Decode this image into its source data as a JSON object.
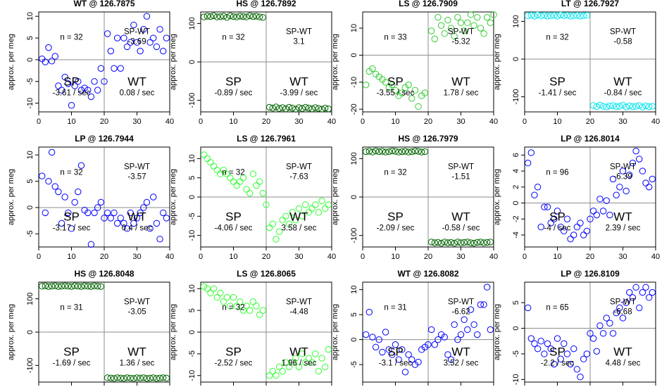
{
  "chart_data": [
    {
      "type": "scatter",
      "title": "WT @ 126.7875",
      "ylabel": "approx. per meg",
      "color": "#0000ff",
      "xlim": [
        0,
        40
      ],
      "ylim": [
        -12,
        11
      ],
      "xticks": [
        0,
        10,
        20,
        30,
        40
      ],
      "yticks": [
        -10,
        -5,
        0,
        5,
        10
      ],
      "labels": {
        "n": "n = 32",
        "sp": "SP",
        "sp_rate": "-3.61 / sec",
        "wt": "WT",
        "wt_rate": "0.08 / sec",
        "sp_wt": "SP-WT",
        "sp_wt_val": "-3.69"
      },
      "x": [
        1,
        2,
        3,
        4,
        5,
        6,
        7,
        8,
        9,
        10,
        11,
        12,
        13,
        14,
        15,
        16,
        17,
        18,
        19,
        20,
        21,
        22,
        23,
        24,
        25,
        26,
        27,
        28,
        29,
        30,
        31,
        32,
        33,
        34,
        35,
        36,
        37,
        38,
        39
      ],
      "y": [
        0.2,
        -0.5,
        2.8,
        -0.3,
        0.8,
        -6,
        -7,
        -4,
        -5.5,
        -10.5,
        -6,
        -5,
        -7,
        -6.5,
        -7,
        -8.5,
        -5,
        -7,
        -2,
        -5,
        6,
        2,
        -2,
        5,
        -2,
        5,
        3,
        4,
        8,
        4,
        2,
        7,
        10,
        4,
        5,
        3,
        7,
        2,
        5
      ]
    },
    {
      "type": "scatter",
      "title": "HS @ 126.7892",
      "ylabel": "approx. per meg",
      "color": "#006400",
      "xlim": [
        0,
        40
      ],
      "ylim": [
        -130,
        130
      ],
      "xticks": [
        0,
        10,
        20,
        30,
        40
      ],
      "yticks": [
        -100,
        0,
        100
      ],
      "labels": {
        "n": "n = 32",
        "sp": "SP",
        "sp_rate": "-0.89 / sec",
        "wt": "WT",
        "wt_rate": "-3.99 / sec",
        "sp_wt": "SP-WT",
        "sp_wt_val": "3.1"
      },
      "x": [
        1,
        2,
        3,
        4,
        5,
        6,
        7,
        8,
        9,
        10,
        11,
        12,
        13,
        14,
        15,
        16,
        17,
        18,
        19,
        21,
        22,
        23,
        24,
        25,
        26,
        27,
        28,
        29,
        30,
        31,
        32,
        33,
        34,
        35,
        36,
        37,
        38,
        39
      ],
      "y": [
        117,
        119,
        118,
        120,
        117,
        118,
        119,
        116,
        120,
        118,
        117,
        119,
        118,
        117,
        120,
        118,
        119,
        117,
        116,
        -118,
        -120,
        -117,
        -121,
        -119,
        -122,
        -118,
        -120,
        -123,
        -119,
        -121,
        -118,
        -120,
        -122,
        -119,
        -121,
        -123,
        -120,
        -122
      ]
    },
    {
      "type": "scatter",
      "title": "LS @ 126.7909",
      "ylabel": "approx. per meg",
      "color": "#33cc33",
      "xlim": [
        0,
        40
      ],
      "ylim": [
        -21,
        16
      ],
      "xticks": [
        0,
        10,
        20,
        30,
        40
      ],
      "yticks": [
        -20,
        -10,
        0,
        10
      ],
      "labels": {
        "n": "n = 33",
        "sp": "SP",
        "sp_rate": "-3.55 / sec",
        "wt": "WT",
        "wt_rate": "1.78 / sec",
        "sp_wt": "SP-WT",
        "sp_wt_val": "-5.32"
      },
      "x": [
        1,
        2,
        3,
        4,
        5,
        6,
        7,
        8,
        9,
        10,
        11,
        12,
        13,
        14,
        15,
        16,
        17,
        18,
        19,
        21,
        22,
        23,
        24,
        25,
        26,
        27,
        28,
        29,
        30,
        31,
        32,
        33,
        34,
        35,
        36,
        37,
        38,
        39,
        40
      ],
      "y": [
        -11,
        -6,
        -5,
        -7,
        -8,
        -9,
        -10,
        -12,
        -11,
        -13,
        -15,
        -14,
        -12,
        -11,
        -16,
        -13,
        -19,
        -15,
        -14,
        9,
        6,
        14,
        11,
        8,
        13,
        10,
        7,
        14,
        12,
        9,
        12,
        15,
        11,
        14,
        10,
        8,
        14,
        12,
        15
      ]
    },
    {
      "type": "scatter",
      "title": "LT @ 126.7927",
      "ylabel": "approx. per meg",
      "color": "#00e5ee",
      "xlim": [
        0,
        40
      ],
      "ylim": [
        -140,
        125
      ],
      "xticks": [
        0,
        10,
        20,
        30,
        40
      ],
      "yticks": [
        -100,
        0,
        100
      ],
      "labels": {
        "n": "n = 32",
        "sp": "SP",
        "sp_rate": "-1.41 / sec",
        "wt": "WT",
        "wt_rate": "-0.84 / sec",
        "sp_wt": "SP-WT",
        "sp_wt_val": "-0.58"
      },
      "x": [
        1,
        2,
        3,
        4,
        5,
        6,
        7,
        8,
        9,
        10,
        11,
        12,
        13,
        14,
        15,
        16,
        17,
        18,
        19,
        21,
        22,
        23,
        24,
        25,
        26,
        27,
        28,
        29,
        30,
        31,
        32,
        33,
        34,
        35,
        36,
        37,
        38,
        39
      ],
      "y": [
        115,
        116,
        114,
        117,
        115,
        116,
        114,
        115,
        116,
        114,
        117,
        115,
        116,
        114,
        115,
        116,
        114,
        115,
        116,
        -123,
        -126,
        -122,
        -125,
        -127,
        -124,
        -123,
        -126,
        -125,
        -122,
        -127,
        -124,
        -126,
        -125,
        -123,
        -127,
        -124,
        -126,
        -125
      ]
    },
    {
      "type": "scatter",
      "title": "LP @ 126.7944",
      "ylabel": "approx. per meg",
      "color": "#0000ff",
      "xlim": [
        0,
        40
      ],
      "ylim": [
        -7.5,
        11.5
      ],
      "xticks": [
        0,
        10,
        20,
        30,
        40
      ],
      "yticks": [
        -5,
        0,
        5,
        10
      ],
      "labels": {
        "n": "n = 32",
        "sp": "SP",
        "sp_rate": "-3.17 / sec",
        "wt": "WT",
        "wt_rate": "0.4 / sec",
        "sp_wt": "SP-WT",
        "sp_wt_val": "-3.57"
      },
      "x": [
        1,
        2,
        3,
        4,
        5,
        6,
        7,
        8,
        9,
        10,
        11,
        12,
        13,
        14,
        15,
        16,
        17,
        18,
        19,
        20,
        21,
        22,
        23,
        24,
        25,
        26,
        27,
        28,
        29,
        30,
        31,
        32,
        33,
        34,
        35,
        36,
        37,
        38,
        39
      ],
      "y": [
        6,
        -1,
        5,
        10.5,
        4,
        3,
        -3,
        2,
        -1,
        -4,
        1,
        3,
        8,
        -0.5,
        -1,
        -7,
        -1,
        0,
        1,
        -2,
        -1,
        -2,
        -1,
        -3,
        -2,
        -3,
        -4,
        -1,
        -3,
        -2,
        -1,
        0,
        1,
        -4,
        2,
        -3,
        -6,
        -1,
        -2
      ]
    },
    {
      "type": "scatter",
      "title": "LS @ 126.7961",
      "ylabel": "approx. per meg",
      "color": "#33ff33",
      "xlim": [
        0,
        40
      ],
      "ylim": [
        -13,
        13
      ],
      "xticks": [
        0,
        10,
        20,
        30,
        40
      ],
      "yticks": [
        -10,
        -5,
        0,
        5,
        10
      ],
      "labels": {
        "n": "n = 32",
        "sp": "SP",
        "sp_rate": "-4.06 / sec",
        "wt": "WT",
        "wt_rate": "3.58 / sec",
        "sp_wt": "SP-WT",
        "sp_wt_val": "-7.63"
      },
      "x": [
        1,
        2,
        3,
        4,
        5,
        6,
        7,
        8,
        9,
        10,
        11,
        12,
        13,
        14,
        15,
        16,
        17,
        18,
        19,
        20,
        21,
        22,
        23,
        24,
        25,
        26,
        27,
        28,
        29,
        30,
        31,
        32,
        33,
        34,
        35,
        36,
        37,
        38,
        39
      ],
      "y": [
        11,
        10,
        9,
        8,
        7,
        6,
        7,
        6,
        5,
        4,
        3,
        4,
        5,
        2,
        1,
        6,
        3,
        4,
        1,
        -2,
        -8,
        -7,
        -11,
        -9,
        -6,
        -5,
        -7,
        -4,
        -6,
        -3,
        -5,
        -2,
        -4,
        -3,
        -2,
        -4,
        -1,
        -3,
        -2
      ]
    },
    {
      "type": "scatter",
      "title": "HS @ 126.7979",
      "ylabel": "approx. per meg",
      "color": "#006400",
      "xlim": [
        0,
        40
      ],
      "ylim": [
        -130,
        130
      ],
      "xticks": [
        0,
        10,
        20,
        30,
        40
      ],
      "yticks": [
        -100,
        0,
        100
      ],
      "labels": {
        "n": "n = 32",
        "sp": "SP",
        "sp_rate": "-2.09 / sec",
        "wt": "WT",
        "wt_rate": "-0.58 / sec",
        "sp_wt": "SP-WT",
        "sp_wt_val": "-1.51"
      },
      "x": [
        1,
        2,
        3,
        4,
        5,
        6,
        7,
        8,
        9,
        10,
        11,
        12,
        13,
        14,
        15,
        16,
        17,
        18,
        19,
        21,
        22,
        23,
        24,
        25,
        26,
        27,
        28,
        29,
        30,
        31,
        32,
        33,
        34,
        35,
        36,
        37,
        38,
        39
      ],
      "y": [
        118,
        119,
        117,
        120,
        118,
        119,
        117,
        118,
        120,
        119,
        117,
        118,
        119,
        117,
        118,
        120,
        119,
        117,
        118,
        -117,
        -119,
        -118,
        -120,
        -117,
        -119,
        -118,
        -120,
        -117,
        -119,
        -118,
        -117,
        -119,
        -120,
        -118,
        -117,
        -119,
        -118,
        -117
      ]
    },
    {
      "type": "scatter",
      "title": "LP @ 126.8014",
      "ylabel": "approx. per meg",
      "color": "#0000ff",
      "xlim": [
        0,
        40
      ],
      "ylim": [
        -5.5,
        7
      ],
      "xticks": [
        0,
        10,
        20,
        30,
        40
      ],
      "yticks": [
        -4,
        -2,
        0,
        2,
        4,
        6
      ],
      "labels": {
        "n": "n = 96",
        "sp": "SP",
        "sp_rate": "-4 / sec",
        "wt": "WT",
        "wt_rate": "2.39 / sec",
        "sp_wt": "SP-WT",
        "sp_wt_val": "-6.39"
      },
      "x": [
        1,
        2,
        3,
        4,
        5,
        6,
        7,
        8,
        9,
        10,
        11,
        12,
        13,
        14,
        15,
        16,
        17,
        18,
        19,
        20,
        21,
        22,
        23,
        24,
        25,
        26,
        27,
        28,
        29,
        30,
        31,
        32,
        33,
        34,
        35,
        36,
        37,
        38,
        39
      ],
      "y": [
        5,
        6.3,
        1,
        2,
        -3,
        -0.5,
        -0.5,
        -2.5,
        -2,
        -1,
        -3,
        -3.5,
        -2,
        -4.5,
        -4,
        -3,
        -2.5,
        -4,
        -3.5,
        -2,
        -1,
        -1.5,
        0.5,
        -1,
        0.3,
        -1.5,
        3,
        1,
        2,
        4,
        1.5,
        3.5,
        5,
        6.5,
        5.5,
        4,
        2.5,
        2,
        3
      ]
    },
    {
      "type": "scatter",
      "title": "HS @ 126.8048",
      "ylabel": "approx. per meg",
      "color": "#006400",
      "xlim": [
        0,
        40
      ],
      "ylim": [
        -150,
        150
      ],
      "xticks": [
        0,
        10,
        20,
        30,
        40
      ],
      "yticks": [
        -100,
        0,
        100
      ],
      "labels": {
        "n": "n = 31",
        "sp": "SP",
        "sp_rate": "-1.69 / sec",
        "wt": "WT",
        "wt_rate": "1.36 / sec",
        "sp_wt": "SP-WT",
        "sp_wt_val": "-3.05"
      },
      "x": [
        1,
        2,
        3,
        4,
        5,
        6,
        7,
        8,
        9,
        10,
        11,
        12,
        13,
        14,
        15,
        16,
        17,
        18,
        19,
        21,
        22,
        23,
        24,
        25,
        26,
        27,
        28,
        29,
        30,
        31,
        32,
        33,
        34,
        35,
        36,
        37,
        38,
        39
      ],
      "y": [
        138,
        139,
        137,
        138,
        139,
        137,
        138,
        139,
        138,
        137,
        139,
        138,
        137,
        139,
        138,
        137,
        139,
        138,
        137,
        -137,
        -138,
        -139,
        -137,
        -138,
        -139,
        -137,
        -138,
        -139,
        -137,
        -138,
        -137,
        -139,
        -138,
        -137,
        -139,
        -138,
        -137,
        -138
      ]
    },
    {
      "type": "scatter",
      "title": "LS @ 126.8065",
      "ylabel": "approx. per meg",
      "color": "#33ff33",
      "xlim": [
        0,
        40
      ],
      "ylim": [
        -11.5,
        11.5
      ],
      "xticks": [
        0,
        10,
        20,
        30,
        40
      ],
      "yticks": [
        -10,
        -5,
        0,
        5,
        10
      ],
      "labels": {
        "n": "n = 32",
        "sp": "SP",
        "sp_rate": "-2.52 / sec",
        "wt": "WT",
        "wt_rate": "1.96 / sec",
        "sp_wt": "SP-WT",
        "sp_wt_val": "-4.48"
      },
      "x": [
        1,
        2,
        3,
        4,
        5,
        6,
        7,
        8,
        9,
        10,
        11,
        12,
        13,
        14,
        15,
        16,
        17,
        18,
        19,
        21,
        22,
        23,
        24,
        25,
        26,
        27,
        28,
        29,
        30,
        31,
        32,
        33,
        34,
        35,
        36,
        37,
        38,
        39
      ],
      "y": [
        10.5,
        10,
        9,
        10,
        8,
        9,
        7,
        8,
        6,
        8,
        6,
        7,
        5,
        6,
        5,
        7,
        6,
        4,
        5,
        -10,
        -9,
        -10,
        -8,
        -9,
        -7,
        -8,
        -7,
        -6,
        -8,
        -5,
        -7,
        -6,
        -7,
        -5,
        -9,
        -6,
        -8,
        -4
      ]
    },
    {
      "type": "scatter",
      "title": "WT @ 126.8082",
      "ylabel": "approx. per meg",
      "color": "#0000ff",
      "xlim": [
        0,
        40
      ],
      "ylim": [
        -8.5,
        11.5
      ],
      "xticks": [
        0,
        10,
        20,
        30,
        40
      ],
      "yticks": [
        -5,
        0,
        5,
        10
      ],
      "labels": {
        "n": "n = 31",
        "sp": "SP",
        "sp_rate": "-3.1 / sec",
        "wt": "WT",
        "wt_rate": "3.52 / sec",
        "sp_wt": "SP-WT",
        "sp_wt_val": "-6.62"
      },
      "x": [
        1,
        2,
        3,
        4,
        5,
        6,
        7,
        8,
        9,
        10,
        11,
        12,
        13,
        14,
        15,
        16,
        17,
        18,
        19,
        20,
        21,
        22,
        23,
        24,
        25,
        26,
        27,
        28,
        29,
        30,
        31,
        32,
        33,
        34,
        35,
        36,
        37,
        38,
        39
      ],
      "y": [
        1,
        5.5,
        0.5,
        -1.5,
        0,
        -2.5,
        1.5,
        -2,
        -3,
        -1,
        -4,
        -2,
        -6.5,
        -3,
        -4,
        -5,
        -4.5,
        -2,
        -1.5,
        -1,
        2,
        -1,
        0,
        1,
        0.5,
        -3,
        -4,
        3,
        0,
        1,
        4,
        2,
        6,
        3,
        1,
        7,
        7,
        10.5,
        2
      ]
    },
    {
      "type": "scatter",
      "title": "LP @ 126.8109",
      "ylabel": "approx. per meg",
      "color": "#0000ff",
      "xlim": [
        0,
        40
      ],
      "ylim": [
        -10.5,
        9
      ],
      "xticks": [
        0,
        10,
        20,
        30,
        40
      ],
      "yticks": [
        -10,
        -5,
        0,
        5
      ],
      "labels": {
        "n": "n = 65",
        "sp": "SP",
        "sp_rate": "-2.2 / sec",
        "wt": "WT",
        "wt_rate": "4.48 / sec",
        "sp_wt": "SP-WT",
        "sp_wt_val": "-6.68"
      },
      "x": [
        1,
        2,
        3,
        4,
        5,
        6,
        7,
        8,
        9,
        10,
        11,
        12,
        13,
        14,
        15,
        16,
        17,
        18,
        19,
        20,
        21,
        22,
        23,
        24,
        25,
        26,
        27,
        28,
        29,
        30,
        31,
        32,
        33,
        34,
        35,
        36,
        37,
        38,
        39
      ],
      "y": [
        4,
        -2,
        -3,
        -4,
        -2.5,
        -5,
        -3,
        -4,
        -7,
        -2,
        -6,
        -3,
        -5,
        -7,
        -4,
        -8,
        -9.5,
        -6,
        -5,
        -1,
        -2,
        -4.5,
        0.5,
        -1,
        2,
        1,
        -1,
        3,
        4,
        2,
        5,
        7,
        6,
        8,
        4,
        7,
        8,
        6,
        7
      ]
    }
  ]
}
